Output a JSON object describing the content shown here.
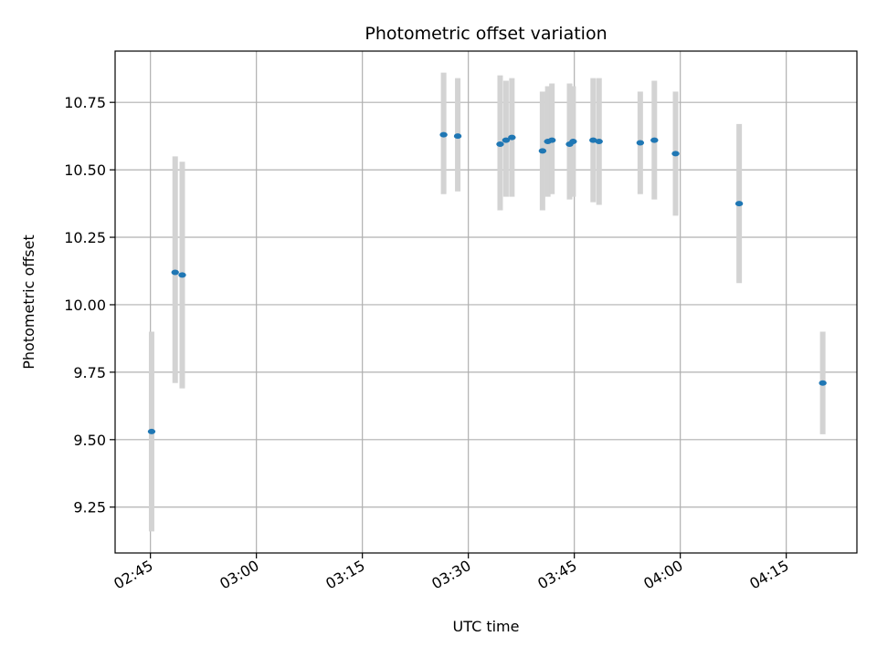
{
  "chart_data": {
    "type": "scatter",
    "title": "Photometric offset variation",
    "xlabel": "UTC time",
    "ylabel": "Photometric offset",
    "x_unit": "UTC time (HH:MM)",
    "xlim": [
      "02:40",
      "04:25"
    ],
    "ylim": [
      9.08,
      10.94
    ],
    "x_ticks": [
      "02:45",
      "03:00",
      "03:15",
      "03:30",
      "03:45",
      "04:00",
      "04:15"
    ],
    "y_ticks": [
      "9.25",
      "9.50",
      "9.75",
      "10.00",
      "10.25",
      "10.50",
      "10.75"
    ],
    "grid": true,
    "colors": {
      "point": "#1f77b4",
      "errorbar": "#d3d3d3",
      "grid": "#b0b0b0"
    },
    "points": [
      {
        "t": "02:45:10",
        "y": 9.53,
        "lo": 9.16,
        "hi": 9.9
      },
      {
        "t": "02:48:30",
        "y": 10.12,
        "lo": 9.71,
        "hi": 10.55
      },
      {
        "t": "02:49:30",
        "y": 10.11,
        "lo": 9.69,
        "hi": 10.53
      },
      {
        "t": "03:26:30",
        "y": 10.63,
        "lo": 10.41,
        "hi": 10.86
      },
      {
        "t": "03:28:30",
        "y": 10.625,
        "lo": 10.42,
        "hi": 10.84
      },
      {
        "t": "03:34:30",
        "y": 10.595,
        "lo": 10.35,
        "hi": 10.85
      },
      {
        "t": "03:35:20",
        "y": 10.61,
        "lo": 10.4,
        "hi": 10.83
      },
      {
        "t": "03:36:10",
        "y": 10.62,
        "lo": 10.4,
        "hi": 10.84
      },
      {
        "t": "03:40:30",
        "y": 10.57,
        "lo": 10.35,
        "hi": 10.79
      },
      {
        "t": "03:41:15",
        "y": 10.605,
        "lo": 10.4,
        "hi": 10.81
      },
      {
        "t": "03:41:50",
        "y": 10.61,
        "lo": 10.41,
        "hi": 10.82
      },
      {
        "t": "03:44:20",
        "y": 10.595,
        "lo": 10.39,
        "hi": 10.82
      },
      {
        "t": "03:44:50",
        "y": 10.605,
        "lo": 10.4,
        "hi": 10.81
      },
      {
        "t": "03:47:40",
        "y": 10.61,
        "lo": 10.38,
        "hi": 10.84
      },
      {
        "t": "03:48:30",
        "y": 10.605,
        "lo": 10.37,
        "hi": 10.84
      },
      {
        "t": "03:54:20",
        "y": 10.6,
        "lo": 10.41,
        "hi": 10.79
      },
      {
        "t": "03:56:20",
        "y": 10.61,
        "lo": 10.39,
        "hi": 10.83
      },
      {
        "t": "03:59:20",
        "y": 10.56,
        "lo": 10.33,
        "hi": 10.79
      },
      {
        "t": "04:08:20",
        "y": 10.375,
        "lo": 10.08,
        "hi": 10.67
      },
      {
        "t": "04:20:10",
        "y": 9.71,
        "lo": 9.52,
        "hi": 9.9
      }
    ]
  }
}
